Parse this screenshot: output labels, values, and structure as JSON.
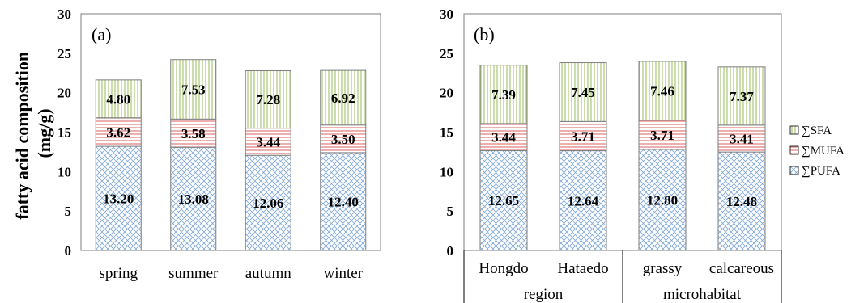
{
  "ylabel": "fatty acid composition (mg/g)",
  "legend": [
    "∑SFA",
    "∑MUFA",
    "∑PUFA"
  ],
  "colors": {
    "PUFA": "#7fa7d6",
    "MUFA": "#e07a7a",
    "SFA": "#a9c774",
    "frame": "#7f7f7f"
  },
  "chart_data": [
    {
      "type": "bar",
      "stacked": true,
      "panel_label": "(a)",
      "categories": [
        "spring",
        "summer",
        "autumn",
        "winter"
      ],
      "series": [
        {
          "name": "∑PUFA",
          "values": [
            13.2,
            13.08,
            12.06,
            12.4
          ],
          "labels": [
            "13.20",
            "13.08",
            "12.06",
            "12.40"
          ]
        },
        {
          "name": "∑MUFA",
          "values": [
            3.62,
            3.58,
            3.44,
            3.5
          ],
          "labels": [
            "3.62",
            "3.58",
            "3.44",
            "3.50"
          ]
        },
        {
          "name": "∑SFA",
          "values": [
            4.8,
            7.53,
            7.28,
            6.92
          ],
          "labels": [
            "4.80",
            "7.53",
            "7.28",
            "6.92"
          ]
        }
      ],
      "ylim": [
        0,
        30
      ],
      "yticks": [
        "0",
        "5",
        "10",
        "15",
        "20",
        "25",
        "30"
      ],
      "ylabel": "fatty acid composition (mg/g)",
      "grid": false
    },
    {
      "type": "bar",
      "stacked": true,
      "panel_label": "(b)",
      "categories": [
        "Hongdo",
        "Hataedo",
        "grassy",
        "calcareous"
      ],
      "groups": [
        {
          "name": "region",
          "categories": [
            "Hongdo",
            "Hataedo"
          ]
        },
        {
          "name": "microhabitat",
          "categories": [
            "grassy",
            "calcareous"
          ]
        }
      ],
      "series": [
        {
          "name": "∑PUFA",
          "values": [
            12.65,
            12.64,
            12.8,
            12.48
          ],
          "labels": [
            "12.65",
            "12.64",
            "12.80",
            "12.48"
          ]
        },
        {
          "name": "∑MUFA",
          "values": [
            3.44,
            3.71,
            3.71,
            3.41
          ],
          "labels": [
            "3.44",
            "3.71",
            "3.71",
            "3.41"
          ]
        },
        {
          "name": "∑SFA",
          "values": [
            7.39,
            7.45,
            7.46,
            7.37
          ],
          "labels": [
            "7.39",
            "7.45",
            "7.46",
            "7.37"
          ]
        }
      ],
      "ylim": [
        0,
        30
      ],
      "yticks": [
        "0",
        "5",
        "10",
        "15",
        "20",
        "25",
        "30"
      ],
      "grid": false,
      "legend_position": "right"
    }
  ]
}
